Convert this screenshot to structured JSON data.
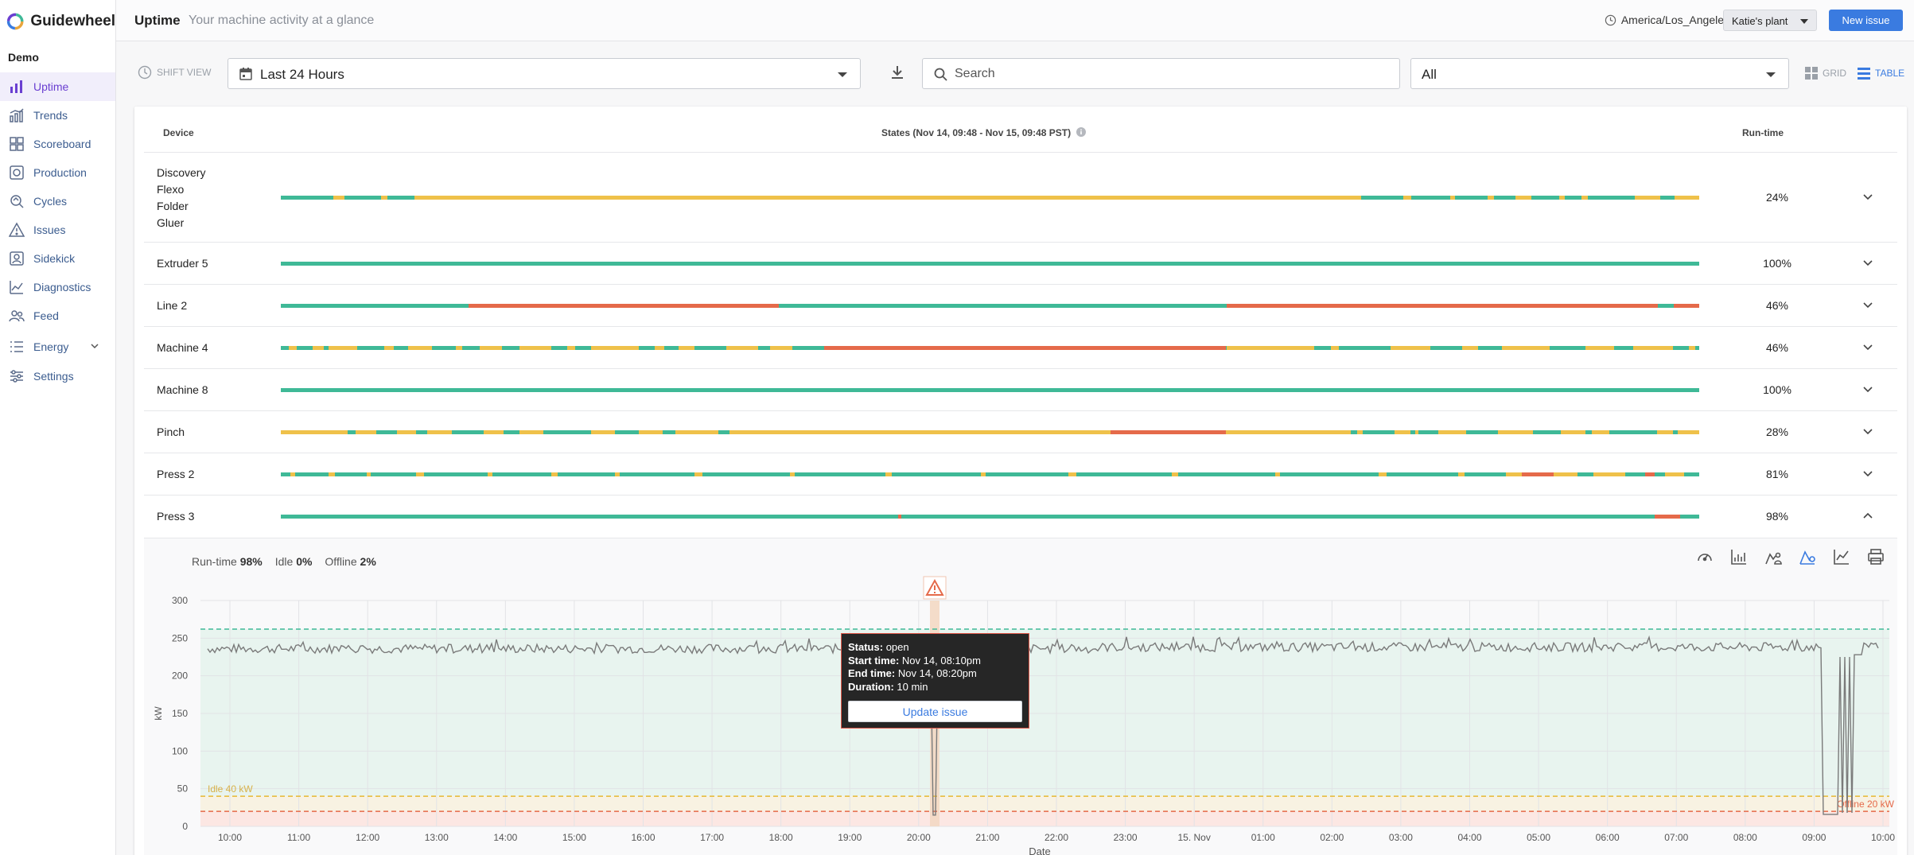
{
  "app": {
    "brand": "Guidewheel",
    "org": "Demo"
  },
  "sidebar": {
    "items": [
      {
        "label": "Uptime",
        "icon": "bar-chart-icon",
        "active": true
      },
      {
        "label": "Trends",
        "icon": "trends-icon"
      },
      {
        "label": "Scoreboard",
        "icon": "scoreboard-icon"
      },
      {
        "label": "Production",
        "icon": "production-icon"
      },
      {
        "label": "Cycles",
        "icon": "cycles-icon"
      },
      {
        "label": "Issues",
        "icon": "warning-icon"
      },
      {
        "label": "Sidekick",
        "icon": "sidekick-icon"
      },
      {
        "label": "Diagnostics",
        "icon": "diagnostics-icon"
      },
      {
        "label": "Feed",
        "icon": "people-icon"
      },
      {
        "label": "Energy",
        "icon": "list-icon"
      },
      {
        "label": "Settings",
        "icon": "sliders-icon"
      }
    ]
  },
  "header": {
    "title": "Uptime",
    "subtitle": "Your machine activity at a glance",
    "timezone": "America/Los_Angeles",
    "plant": "Katie's plant",
    "new_issue": "New issue"
  },
  "toolbar": {
    "shift_view": "SHIFT VIEW",
    "range": "Last 24 Hours",
    "search_placeholder": "Search",
    "filter": "All",
    "grid": "GRID",
    "table": "TABLE"
  },
  "table": {
    "col_device": "Device",
    "col_states": "States (Nov 14, 09:48 - Nov 15, 09:48 PST)",
    "col_runtime": "Run-time",
    "rows": [
      {
        "name_lines": [
          "Discovery",
          "Flexo",
          "Folder",
          "Gluer"
        ],
        "runtime": "24%"
      },
      {
        "name": "Extruder 5",
        "runtime": "100%"
      },
      {
        "name": "Line 2",
        "runtime": "46%"
      },
      {
        "name": "Machine 4",
        "runtime": "46%"
      },
      {
        "name": "Machine 8",
        "runtime": "100%"
      },
      {
        "name": "Pinch",
        "runtime": "28%"
      },
      {
        "name": "Press 2",
        "runtime": "81%"
      },
      {
        "name": "Press 3",
        "runtime": "98%"
      }
    ]
  },
  "status_colors": {
    "running": "#3fb997",
    "idle": "#efc14a",
    "offline": "#e56a4a"
  },
  "expanded": {
    "runtime_label": "Run-time",
    "runtime_value": "98%",
    "idle_label": "Idle",
    "idle_value": "0%",
    "offline_label": "Offline",
    "offline_value": "2%"
  },
  "chart_data": {
    "type": "line",
    "ylabel": "kW",
    "xlabel": "Date",
    "ylim": [
      0,
      300
    ],
    "y_ticks": [
      "0",
      "50",
      "100",
      "150",
      "200",
      "250",
      "300"
    ],
    "x_ticks": [
      "10:00",
      "11:00",
      "12:00",
      "13:00",
      "14:00",
      "15:00",
      "16:00",
      "17:00",
      "18:00",
      "19:00",
      "20:00",
      "21:00",
      "22:00",
      "23:00",
      "15. Nov",
      "01:00",
      "02:00",
      "03:00",
      "04:00",
      "05:00",
      "06:00",
      "07:00",
      "08:00",
      "09:00",
      "10:00"
    ],
    "thresholds": [
      {
        "label": "Idle 40 kW",
        "value": 40
      },
      {
        "label": "Offline 20 kW",
        "value": 20
      },
      {
        "value": 262
      }
    ],
    "series": [
      {
        "values_summary": "approximately 237 kW steady, drop to ~15 kW around 20:10-20:20 Nov 14 and around 09:00-09:20 Nov 15"
      }
    ],
    "grid": true
  },
  "tooltip": {
    "status_label": "Status:",
    "status": "open",
    "start_label": "Start time:",
    "start": "Nov 14, 08:10pm",
    "end_label": "End time:",
    "end": "Nov 14, 08:20pm",
    "duration_label": "Duration:",
    "duration": "10 min",
    "button": "Update issue"
  }
}
